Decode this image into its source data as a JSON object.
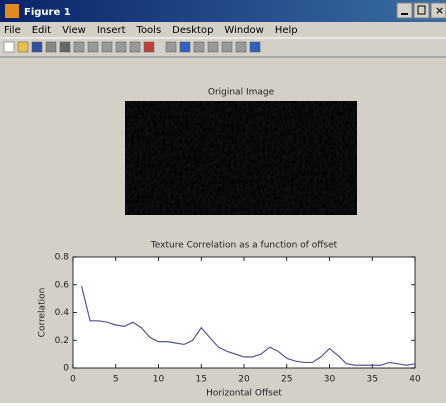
{
  "window": {
    "title": "Figure 1"
  },
  "menu": [
    "File",
    "Edit",
    "View",
    "Insert",
    "Tools",
    "Desktop",
    "Window",
    "Help"
  ],
  "image": {
    "title": "Original Image"
  },
  "chart_data": {
    "type": "line",
    "title": "Texture Correlation as a function of offset",
    "x_label": "Horizontal Offset",
    "y_label": "Correlation",
    "color": "#55559a",
    "x": [
      1,
      2,
      3,
      4,
      5,
      6,
      7,
      8,
      9,
      10,
      11,
      12,
      13,
      14,
      15,
      16,
      17,
      18,
      19,
      20,
      21,
      22,
      23,
      24,
      25,
      26,
      27,
      28,
      29,
      30,
      31,
      32,
      33,
      34,
      35,
      36,
      37,
      38,
      39,
      40
    ],
    "values": [
      0.59,
      0.34,
      0.34,
      0.33,
      0.31,
      0.3,
      0.33,
      0.29,
      0.22,
      0.19,
      0.19,
      0.18,
      0.17,
      0.2,
      0.29,
      0.22,
      0.15,
      0.12,
      0.1,
      0.08,
      0.08,
      0.1,
      0.15,
      0.12,
      0.07,
      0.05,
      0.04,
      0.04,
      0.08,
      0.14,
      0.09,
      0.03,
      0.02,
      0.02,
      0.02,
      0.02,
      0.04,
      0.03,
      0.02,
      0.03
    ],
    "xlim": [
      0,
      40
    ],
    "ylim": [
      0,
      0.8
    ],
    "xticks": [
      0,
      5,
      10,
      15,
      20,
      25,
      30,
      35,
      40
    ],
    "yticks": [
      0,
      0.2,
      0.4,
      0.6,
      0.8
    ]
  }
}
